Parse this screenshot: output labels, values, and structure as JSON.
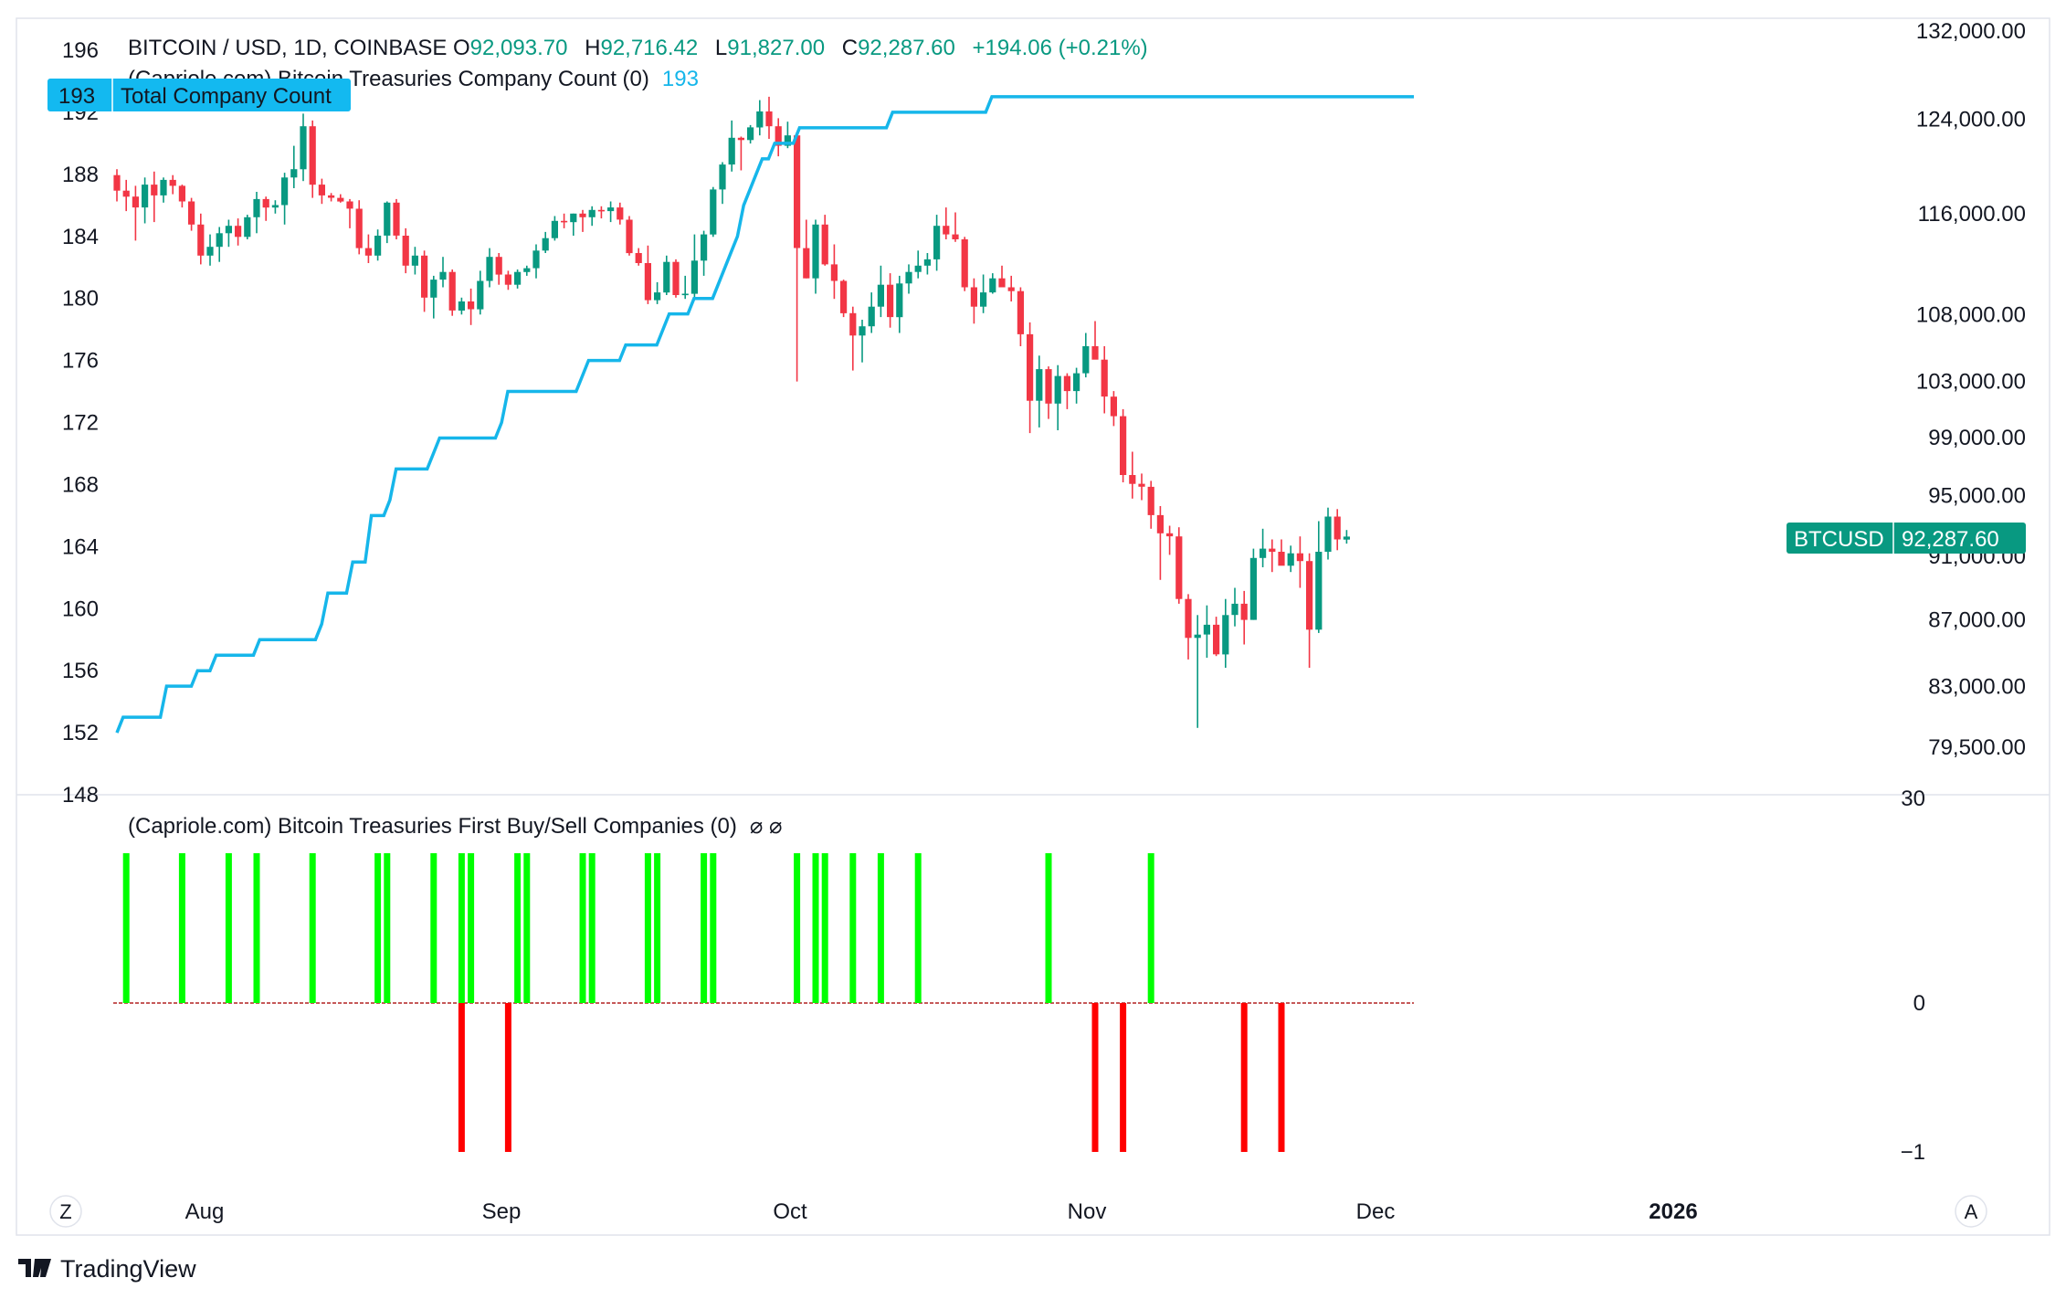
{
  "header": {
    "symbol": "BITCOIN / USD, 1D, COINBASE",
    "o_label": "O",
    "o_value": "92,093.70",
    "h_label": "H",
    "h_value": "92,716.42",
    "l_label": "L",
    "l_value": "91,827.00",
    "c_label": "C",
    "c_value": "92,287.60",
    "change": "+194.06 (+0.21%)",
    "indicator_name": "(Capriole.com) Bitcoin Treasuries Company Count (0)",
    "indicator_value": "193",
    "pane2_name": "(Capriole.com) Bitcoin Treasuries First Buy/Sell Companies (0)",
    "pane2_symbols": "⌀  ⌀"
  },
  "badges": {
    "count_value": "193",
    "count_label": "Total Company Count",
    "price_symbol": "BTCUSD",
    "price_value": "92,287.60"
  },
  "axis_buttons": {
    "left": "Z",
    "right": "A"
  },
  "brand": "TradingView",
  "colors": {
    "up": "#089981",
    "down": "#f23645",
    "line": "#16b6ea",
    "buy": "#00ff00",
    "sell": "#ff0000",
    "zero": "#b22222",
    "badge_blue": "#13b9f0",
    "badge_green": "#089981"
  },
  "chart_data": [
    {
      "type": "candlestick",
      "title": "BITCOIN / USD, 1D, COINBASE",
      "series_name": "BTCUSD",
      "x_labels": [
        "Aug",
        "Sep",
        "Oct",
        "Nov",
        "Dec",
        "2026"
      ],
      "price_axis_ticks": [
        132000,
        124000,
        116000,
        108000,
        103000,
        99000,
        95000,
        91000,
        87000,
        83000,
        79500
      ],
      "price_axis_labels": [
        "132,000.00",
        "124,000.00",
        "116,000.00",
        "108,000.00",
        "103,000.00",
        "99,000.00",
        "95,000.00",
        "91,000.00",
        "87,000.00",
        "83,000.00",
        "79,500.00"
      ],
      "scale": "log",
      "last_price": 92287.6,
      "candles_ohlc": [
        [
          119200,
          119700,
          117000,
          117900
        ],
        [
          117900,
          118800,
          116200,
          117400
        ],
        [
          117400,
          118300,
          113800,
          116500
        ],
        [
          116500,
          119000,
          115200,
          118400
        ],
        [
          118400,
          119500,
          115300,
          117500
        ],
        [
          117500,
          119000,
          116900,
          118800
        ],
        [
          118800,
          119200,
          117600,
          118300
        ],
        [
          118300,
          118400,
          116500,
          117000
        ],
        [
          117000,
          117300,
          114600,
          115100
        ],
        [
          115100,
          116000,
          111900,
          112600
        ],
        [
          112600,
          114300,
          111800,
          113300
        ],
        [
          113300,
          114900,
          112100,
          114400
        ],
        [
          114400,
          115500,
          113300,
          115000
        ],
        [
          115000,
          115600,
          113400,
          114100
        ],
        [
          114100,
          115900,
          113900,
          115700
        ],
        [
          115700,
          117800,
          114400,
          117200
        ],
        [
          117200,
          117400,
          115400,
          116500
        ],
        [
          116500,
          117100,
          116000,
          116700
        ],
        [
          116700,
          119400,
          115100,
          119000
        ],
        [
          119000,
          121700,
          118100,
          119700
        ],
        [
          119700,
          124500,
          118700,
          123400
        ],
        [
          123400,
          123900,
          117300,
          118400
        ],
        [
          118400,
          118900,
          116800,
          117500
        ],
        [
          117500,
          117700,
          117000,
          117300
        ],
        [
          117300,
          117600,
          116900,
          117000
        ],
        [
          117000,
          117200,
          114800,
          116400
        ],
        [
          116400,
          117100,
          112700,
          113200
        ],
        [
          113200,
          114300,
          112000,
          112600
        ],
        [
          112600,
          114700,
          112200,
          114200
        ],
        [
          114200,
          117000,
          113600,
          116900
        ],
        [
          116900,
          117200,
          113900,
          114200
        ],
        [
          114200,
          114800,
          111200,
          111800
        ],
        [
          111800,
          113300,
          111100,
          112600
        ],
        [
          112600,
          113000,
          108200,
          109300
        ],
        [
          109300,
          111000,
          107700,
          110700
        ],
        [
          110700,
          112500,
          110100,
          111300
        ],
        [
          111300,
          111500,
          107900,
          108300
        ],
        [
          108300,
          109300,
          108000,
          109000
        ],
        [
          109000,
          110000,
          107200,
          108400
        ],
        [
          108400,
          111400,
          108000,
          110600
        ],
        [
          110600,
          113200,
          110100,
          112500
        ],
        [
          112500,
          112800,
          110300,
          111100
        ],
        [
          111100,
          111400,
          109900,
          110300
        ],
        [
          110300,
          111500,
          110000,
          111300
        ],
        [
          111300,
          111800,
          111000,
          111600
        ],
        [
          111600,
          113500,
          110800,
          113000
        ],
        [
          113000,
          114500,
          112800,
          114000
        ],
        [
          114000,
          115800,
          113800,
          115400
        ],
        [
          115400,
          116000,
          114800,
          115300
        ],
        [
          115300,
          116000,
          114200,
          116000
        ],
        [
          116000,
          116300,
          114500,
          115700
        ],
        [
          115700,
          116600,
          115000,
          116300
        ],
        [
          116300,
          116600,
          115600,
          116200
        ],
        [
          116200,
          117000,
          115300,
          116500
        ],
        [
          116500,
          116900,
          115100,
          115500
        ],
        [
          115500,
          115800,
          112600,
          112800
        ],
        [
          112800,
          113200,
          111800,
          112000
        ],
        [
          112000,
          113400,
          108800,
          109100
        ],
        [
          109100,
          110500,
          108800,
          109700
        ],
        [
          109700,
          112600,
          109500,
          112100
        ],
        [
          112100,
          112300,
          109300,
          109500
        ],
        [
          109500,
          111000,
          109200,
          109600
        ],
        [
          109600,
          114300,
          109200,
          112200
        ],
        [
          112200,
          114600,
          111000,
          114300
        ],
        [
          114300,
          118200,
          114100,
          118000
        ],
        [
          118000,
          120300,
          116800,
          120100
        ],
        [
          120100,
          123900,
          119500,
          122400
        ],
        [
          122400,
          122500,
          119600,
          122200
        ],
        [
          122200,
          123500,
          121900,
          123300
        ],
        [
          123300,
          125700,
          122600,
          124700
        ],
        [
          124700,
          126000,
          122300,
          123400
        ],
        [
          123400,
          124100,
          120800,
          121700
        ],
        [
          121700,
          123800,
          121500,
          122600
        ],
        [
          122600,
          122900,
          103000,
          113200
        ],
        [
          113200,
          115500,
          110800,
          110800
        ],
        [
          110800,
          115500,
          109600,
          115100
        ],
        [
          115100,
          115900,
          111800,
          111900
        ],
        [
          111900,
          113500,
          109200,
          110600
        ],
        [
          110600,
          110700,
          107800,
          108100
        ],
        [
          108100,
          108600,
          103800,
          106400
        ],
        [
          106400,
          107600,
          104400,
          107100
        ],
        [
          107100,
          109700,
          106600,
          108600
        ],
        [
          108600,
          111800,
          107800,
          110300
        ],
        [
          110300,
          111200,
          107000,
          107800
        ],
        [
          107800,
          111000,
          106600,
          110400
        ],
        [
          110400,
          111900,
          109600,
          111300
        ],
        [
          111300,
          113000,
          110800,
          111800
        ],
        [
          111800,
          112800,
          111100,
          112300
        ],
        [
          112300,
          115900,
          111400,
          115000
        ],
        [
          115000,
          116500,
          113900,
          114300
        ],
        [
          114300,
          116100,
          113700,
          113900
        ],
        [
          113900,
          114100,
          109800,
          110100
        ],
        [
          110100,
          110800,
          107300,
          108600
        ],
        [
          108600,
          111100,
          108100,
          109700
        ],
        [
          109700,
          111200,
          109600,
          110800
        ],
        [
          110800,
          111800,
          110200,
          110100
        ],
        [
          110100,
          111000,
          109000,
          109800
        ],
        [
          109800,
          110100,
          105600,
          106500
        ],
        [
          106500,
          107400,
          99300,
          101600
        ],
        [
          101600,
          104900,
          99700,
          103900
        ],
        [
          103900,
          104100,
          100300,
          101400
        ],
        [
          101400,
          104200,
          99500,
          103400
        ],
        [
          103400,
          103600,
          101000,
          102300
        ],
        [
          102300,
          104000,
          101400,
          103600
        ],
        [
          103600,
          106600,
          103300,
          105600
        ],
        [
          105600,
          107500,
          104700,
          104600
        ],
        [
          104600,
          105600,
          100700,
          101900
        ],
        [
          101900,
          102300,
          99800,
          100500
        ],
        [
          100500,
          101000,
          95900,
          96400
        ],
        [
          96400,
          98000,
          94800,
          95800
        ],
        [
          95800,
          96500,
          94700,
          95600
        ],
        [
          95600,
          96000,
          92800,
          93700
        ],
        [
          93700,
          94300,
          89500,
          92500
        ],
        [
          92500,
          93000,
          91100,
          92300
        ],
        [
          92300,
          92900,
          88000,
          88300
        ],
        [
          88300,
          88600,
          84600,
          85900
        ],
        [
          85900,
          87300,
          80600,
          86100
        ],
        [
          86100,
          87900,
          84700,
          86700
        ],
        [
          86700,
          87200,
          84800,
          84900
        ],
        [
          84900,
          88300,
          84100,
          87300
        ],
        [
          87300,
          89000,
          86600,
          88000
        ],
        [
          88000,
          88800,
          85500,
          87000
        ],
        [
          87000,
          91500,
          87000,
          90900
        ],
        [
          90900,
          92800,
          90300,
          91500
        ],
        [
          91500,
          92100,
          90000,
          91300
        ],
        [
          91300,
          92100,
          90600,
          90400
        ],
        [
          90400,
          91700,
          90000,
          91200
        ],
        [
          91200,
          92300,
          89000,
          90700
        ],
        [
          90700,
          91200,
          84100,
          86400
        ],
        [
          86400,
          93300,
          86200,
          91300
        ],
        [
          91300,
          94200,
          90800,
          93600
        ],
        [
          93600,
          94100,
          91400,
          92100
        ],
        [
          92093.7,
          92716.42,
          91827,
          92287.6
        ]
      ]
    },
    {
      "type": "line",
      "series_name": "Total Company Count",
      "y_ticks": [
        196,
        192,
        188,
        184,
        180,
        176,
        172,
        168,
        164,
        160,
        156,
        152,
        148
      ],
      "last_value": 193,
      "values": [
        152,
        153,
        153,
        153,
        153,
        153,
        153,
        153,
        155,
        155,
        155,
        155,
        155,
        156,
        156,
        156,
        157,
        157,
        157,
        157,
        157,
        157,
        157,
        158,
        158,
        158,
        158,
        158,
        158,
        158,
        158,
        158,
        158,
        159,
        161,
        161,
        161,
        161,
        163,
        163,
        163,
        166,
        166,
        166,
        167,
        169,
        169,
        169,
        169,
        169,
        169,
        170,
        171,
        171,
        171,
        171,
        171,
        171,
        171,
        171,
        171,
        171,
        172,
        174,
        174,
        174,
        174,
        174,
        174,
        174,
        174,
        174,
        174,
        174,
        174,
        175,
        176,
        176,
        176,
        176,
        176,
        176,
        177,
        177,
        177,
        177,
        177,
        177,
        178,
        179,
        179,
        179,
        179,
        180,
        180,
        180,
        180,
        181,
        182,
        183,
        184,
        186,
        187,
        188,
        189,
        189,
        190,
        190,
        190,
        190,
        191,
        191,
        191,
        191,
        191,
        191,
        191,
        191,
        191,
        191,
        191,
        191,
        191,
        191,
        191,
        192,
        192,
        192,
        192,
        192,
        192,
        192,
        192,
        192,
        192,
        192,
        192,
        192,
        192,
        192,
        192,
        193,
        193,
        193,
        193,
        193,
        193,
        193,
        193,
        193,
        193,
        193,
        193,
        193,
        193,
        193,
        193,
        193,
        193,
        193,
        193,
        193,
        193,
        193,
        193,
        193,
        193,
        193,
        193,
        193,
        193,
        193,
        193,
        193,
        193,
        193,
        193,
        193,
        193,
        193,
        193,
        193,
        193,
        193,
        193,
        193,
        193,
        193,
        193,
        193,
        193,
        193,
        193,
        193,
        193,
        193,
        193,
        193,
        193,
        193,
        193,
        193,
        193,
        193,
        193,
        193,
        193,
        193,
        193,
        193
      ]
    },
    {
      "type": "bar",
      "title": "(Capriole.com) Bitcoin Treasuries First Buy/Sell Companies (0)",
      "y_ticks": [
        30,
        0,
        -1
      ],
      "y_tick_labels": [
        "30",
        "0",
        "−1"
      ],
      "bars": [
        {
          "x": 1,
          "value": 1
        },
        {
          "x": 7,
          "value": 1
        },
        {
          "x": 12,
          "value": 1
        },
        {
          "x": 15,
          "value": 1
        },
        {
          "x": 21,
          "value": 1
        },
        {
          "x": 28,
          "value": 1
        },
        {
          "x": 29,
          "value": 1
        },
        {
          "x": 34,
          "value": 1
        },
        {
          "x": 37,
          "value": 1
        },
        {
          "x": 38,
          "value": 1
        },
        {
          "x": 37,
          "value": -1
        },
        {
          "x": 43,
          "value": 1
        },
        {
          "x": 44,
          "value": 1
        },
        {
          "x": 42,
          "value": -1
        },
        {
          "x": 50,
          "value": 1
        },
        {
          "x": 51,
          "value": 1
        },
        {
          "x": 57,
          "value": 1
        },
        {
          "x": 58,
          "value": 1
        },
        {
          "x": 63,
          "value": 1
        },
        {
          "x": 64,
          "value": 1
        },
        {
          "x": 73,
          "value": 1
        },
        {
          "x": 75,
          "value": 1
        },
        {
          "x": 76,
          "value": 1
        },
        {
          "x": 79,
          "value": 1
        },
        {
          "x": 82,
          "value": 1
        },
        {
          "x": 86,
          "value": 1
        },
        {
          "x": 100,
          "value": 1
        },
        {
          "x": 111,
          "value": 1
        },
        {
          "x": 105,
          "value": -1
        },
        {
          "x": 108,
          "value": -1
        },
        {
          "x": 121,
          "value": -1
        },
        {
          "x": 125,
          "value": -1
        }
      ]
    }
  ]
}
